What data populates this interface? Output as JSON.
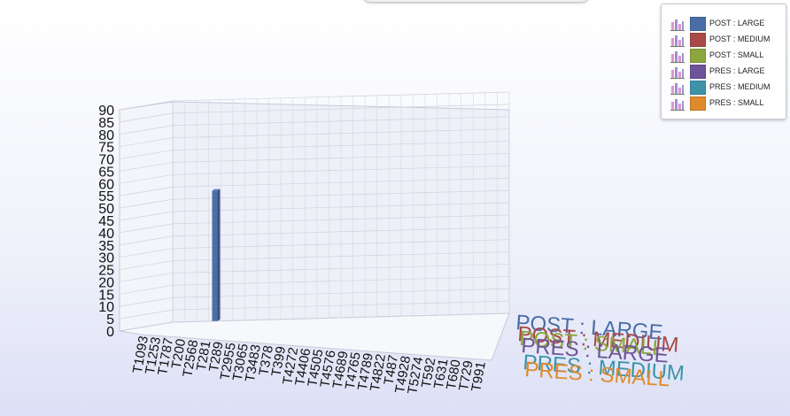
{
  "chart_data": {
    "type": "bar",
    "ylim": [
      0,
      90
    ],
    "yticks": [
      "0",
      "5",
      "10",
      "15",
      "20",
      "25",
      "30",
      "35",
      "40",
      "45",
      "50",
      "55",
      "60",
      "65",
      "70",
      "75",
      "80",
      "85",
      "90"
    ],
    "categories": [
      "T1093",
      "T1253",
      "T1787",
      "T200",
      "T2568",
      "T281",
      "T289",
      "T2955",
      "T3065",
      "T3483",
      "T378",
      "T399",
      "T4272",
      "T4406",
      "T4505",
      "T4576",
      "T4689",
      "T4765",
      "T4789",
      "T4822",
      "T487",
      "T4928",
      "T5274",
      "T592",
      "T631",
      "T680",
      "T729",
      "T991"
    ],
    "series": [
      {
        "name": "POST : LARGE",
        "color": "#4a6ea8",
        "values": [
          0,
          0,
          0,
          53,
          0,
          0,
          0,
          0,
          0,
          0,
          0,
          0,
          0,
          0,
          0,
          0,
          0,
          0,
          0,
          0,
          0,
          0,
          0,
          0,
          0,
          0,
          0,
          0
        ]
      },
      {
        "name": "POST : MEDIUM",
        "color": "#a84a47",
        "values": [
          0,
          0,
          0,
          0,
          0,
          0,
          0,
          0,
          0,
          0,
          0,
          0,
          0,
          0,
          0,
          0,
          0,
          0,
          0,
          0,
          0,
          0,
          0,
          0,
          0,
          0,
          0,
          0
        ]
      },
      {
        "name": "POST : SMALL",
        "color": "#8aa63c",
        "values": [
          0,
          0,
          0,
          0,
          0,
          0,
          0,
          0,
          0,
          0,
          0,
          0,
          0,
          0,
          0,
          0,
          0,
          0,
          0,
          0,
          0,
          0,
          0,
          0,
          0,
          0,
          0,
          0
        ]
      },
      {
        "name": "PRES : LARGE",
        "color": "#6e5498",
        "values": [
          0,
          0,
          0,
          0,
          0,
          0,
          0,
          0,
          0,
          0,
          0,
          0,
          0,
          0,
          0,
          0,
          0,
          0,
          0,
          0,
          0,
          0,
          0,
          0,
          0,
          0,
          0,
          0
        ]
      },
      {
        "name": "PRES : MEDIUM",
        "color": "#3f93a8",
        "values": [
          0,
          0,
          0,
          0,
          0,
          0,
          0,
          0,
          0,
          0,
          0,
          0,
          0,
          0,
          0,
          0,
          0,
          0,
          0,
          0,
          0,
          0,
          0,
          0,
          0,
          0,
          0,
          0
        ]
      },
      {
        "name": "PRES : SMALL",
        "color": "#e08a2e",
        "values": [
          0,
          0,
          0,
          0,
          0,
          0,
          0,
          0,
          0,
          0,
          0,
          0,
          0,
          0,
          0,
          0,
          0,
          0,
          0,
          0,
          0,
          0,
          0,
          0,
          0,
          0,
          0,
          0
        ]
      }
    ],
    "grid": true,
    "legend": "top-right"
  }
}
